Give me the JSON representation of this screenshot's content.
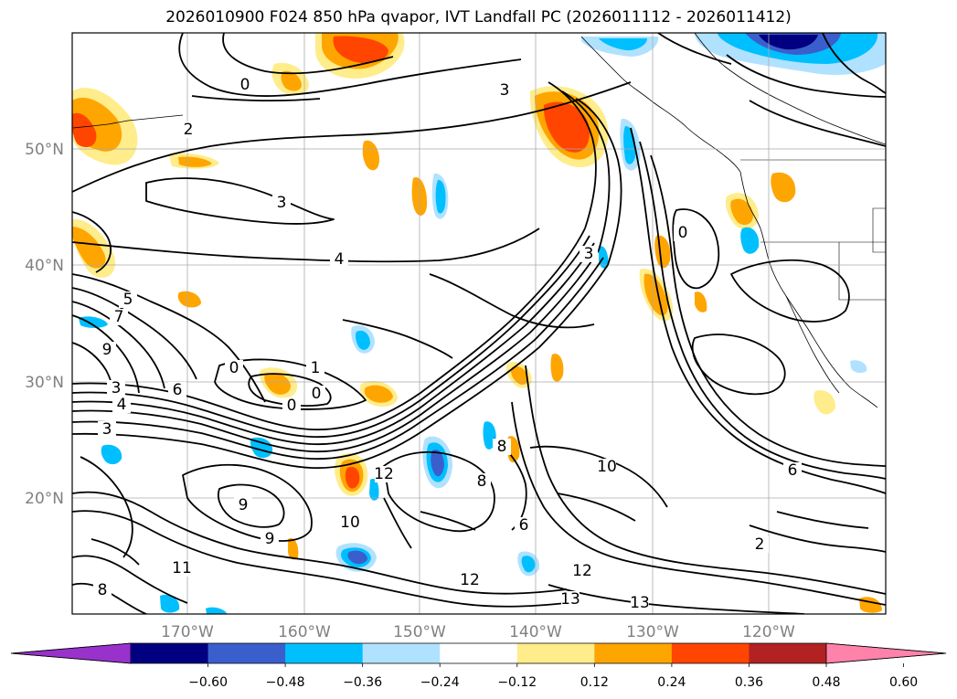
{
  "title": "2026010900 F024 850 hPa qvapor, IVT Landfall PC (2026011112 - 2026011412)",
  "map": {
    "lat_labels": [
      "50°N",
      "40°N",
      "30°N",
      "20°N"
    ],
    "lon_labels": [
      "170°W",
      "160°W",
      "150°W",
      "140°W",
      "130°W",
      "120°W"
    ],
    "contour_labels": [
      "2",
      "3",
      "3",
      "4",
      "0",
      "5",
      "7",
      "9",
      "3",
      "4",
      "3",
      "6",
      "1",
      "0",
      "0",
      "9",
      "9",
      "10",
      "12",
      "11",
      "12",
      "12",
      "13",
      "13",
      "8",
      "8",
      "6",
      "8",
      "10",
      "2",
      "6",
      "3",
      "0",
      "0"
    ]
  },
  "colorbar": {
    "colors": [
      "#9932cc",
      "#000080",
      "#3a5fcd",
      "#00bfff",
      "#b0e2ff",
      "#ffffff",
      "#ffec8b",
      "#ffa500",
      "#ff4500",
      "#b22222",
      "#ff82ab"
    ],
    "tick_labels": [
      "−0.60",
      "−0.48",
      "−0.36",
      "−0.24",
      "−0.12",
      "0.12",
      "0.24",
      "0.36",
      "0.48",
      "0.60"
    ]
  }
}
